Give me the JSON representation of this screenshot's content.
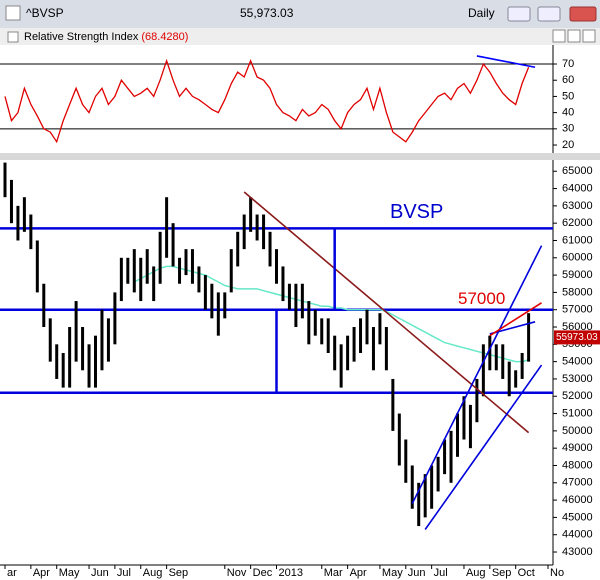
{
  "window": {
    "symbol": "^BVSP",
    "price": "55,973.03",
    "interval": "Daily"
  },
  "chart_data": [
    {
      "type": "line",
      "title": "Relative Strength Index",
      "subtitle": "(68.4280)",
      "color": "#e00000",
      "xlim": [
        0,
        84
      ],
      "ylim": [
        15.7,
        80.5
      ],
      "yticks": [
        20,
        30,
        40,
        50,
        60,
        70
      ],
      "hlines": [
        70,
        30
      ],
      "x": [
        0,
        1,
        2,
        3,
        4,
        5,
        6,
        7,
        8,
        9,
        10,
        11,
        12,
        13,
        14,
        15,
        16,
        17,
        18,
        19,
        20,
        21,
        22,
        23,
        24,
        25,
        26,
        27,
        28,
        29,
        30,
        31,
        32,
        33,
        34,
        35,
        36,
        37,
        38,
        39,
        40,
        41,
        42,
        43,
        44,
        45,
        46,
        47,
        48,
        49,
        50,
        51,
        52,
        53,
        54,
        55,
        56,
        57,
        58,
        59,
        60,
        61,
        62,
        63,
        64,
        65,
        66,
        67,
        68,
        69,
        70,
        71,
        72,
        73,
        74,
        75,
        76,
        77,
        78,
        79,
        80,
        81
      ],
      "values": [
        50,
        35,
        40,
        55,
        45,
        38,
        30,
        28,
        22,
        35,
        45,
        55,
        45,
        40,
        50,
        55,
        45,
        50,
        60,
        55,
        50,
        52,
        55,
        50,
        60,
        72,
        60,
        50,
        55,
        50,
        48,
        45,
        42,
        40,
        48,
        58,
        65,
        62,
        72,
        62,
        60,
        55,
        45,
        40,
        38,
        35,
        42,
        38,
        40,
        45,
        42,
        35,
        30,
        40,
        45,
        48,
        55,
        42,
        55,
        40,
        28,
        25,
        22,
        28,
        35,
        40,
        45,
        50,
        52,
        48,
        55,
        58,
        52,
        60,
        70,
        65,
        58,
        52,
        48,
        45,
        58,
        68
      ],
      "trendlines": [
        {
          "x": [
            73,
            82
          ],
          "y": [
            75,
            68
          ],
          "color": "#0000ff"
        }
      ]
    },
    {
      "type": "range-bar",
      "title": "BVSP",
      "annotation": "57000",
      "last_label": "55973.03",
      "color": "#000000",
      "xlim": [
        0,
        84
      ],
      "ylim": [
        42250,
        65650
      ],
      "yticks": [
        43000,
        44000,
        45000,
        46000,
        47000,
        48000,
        49000,
        50000,
        51000,
        52000,
        53000,
        54000,
        55000,
        56000,
        57000,
        58000,
        59000,
        60000,
        61000,
        62000,
        63000,
        64000,
        65000
      ],
      "xticks": [
        {
          "value": 0,
          "label": "ar"
        },
        {
          "value": 4,
          "label": "Apr"
        },
        {
          "value": 8,
          "label": "May"
        },
        {
          "value": 13,
          "label": "Jun"
        },
        {
          "value": 17,
          "label": "Jul"
        },
        {
          "value": 21,
          "label": "Aug"
        },
        {
          "value": 25,
          "label": "Sep"
        },
        {
          "value": 34,
          "label": "Nov"
        },
        {
          "value": 38,
          "label": "Dec"
        },
        {
          "value": 42,
          "label": "2013"
        },
        {
          "value": 49,
          "label": "Mar"
        },
        {
          "value": 53,
          "label": "Apr"
        },
        {
          "value": 58,
          "label": "May"
        },
        {
          "value": 62,
          "label": "Jun"
        },
        {
          "value": 66,
          "label": "Jul"
        },
        {
          "value": 71,
          "label": "Aug"
        },
        {
          "value": 75,
          "label": "Sep"
        },
        {
          "value": 79,
          "label": "Oct"
        },
        {
          "value": 84,
          "label": "No"
        }
      ],
      "x": [
        0,
        1,
        2,
        3,
        4,
        5,
        6,
        7,
        8,
        9,
        10,
        11,
        12,
        13,
        14,
        15,
        16,
        17,
        18,
        19,
        20,
        21,
        22,
        23,
        24,
        25,
        26,
        27,
        28,
        29,
        30,
        31,
        32,
        33,
        34,
        35,
        36,
        37,
        38,
        39,
        40,
        41,
        42,
        43,
        44,
        45,
        46,
        47,
        48,
        49,
        50,
        51,
        52,
        53,
        54,
        55,
        56,
        57,
        58,
        59,
        60,
        61,
        62,
        63,
        64,
        65,
        66,
        67,
        68,
        69,
        70,
        71,
        72,
        73,
        74,
        75,
        76,
        77,
        78,
        79,
        80,
        81
      ],
      "high": [
        65500,
        64500,
        63000,
        63500,
        62500,
        61000,
        58500,
        56500,
        55000,
        54500,
        56000,
        57500,
        56000,
        55000,
        55500,
        57000,
        56500,
        58000,
        60000,
        60000,
        60500,
        60000,
        60500,
        59500,
        61500,
        63500,
        62000,
        60000,
        60500,
        60500,
        59500,
        59000,
        58500,
        58000,
        58000,
        60500,
        61500,
        62500,
        63500,
        62500,
        62500,
        61500,
        60500,
        59500,
        58500,
        58500,
        58500,
        57500,
        57000,
        56500,
        56500,
        55500,
        55000,
        55500,
        56000,
        56500,
        57000,
        56000,
        56800,
        56000,
        53000,
        51000,
        49500,
        48000,
        47000,
        47500,
        48000,
        48500,
        49500,
        50000,
        51000,
        52000,
        51500,
        53000,
        55000,
        55500,
        55000,
        55000,
        54000,
        53500,
        54500,
        56800
      ],
      "low": [
        63500,
        62000,
        61000,
        61500,
        60500,
        58000,
        56000,
        54000,
        53000,
        52500,
        52500,
        54000,
        53500,
        52500,
        52500,
        53500,
        54000,
        55000,
        57500,
        58500,
        58000,
        57500,
        58500,
        57500,
        58500,
        60000,
        59500,
        58500,
        59000,
        58500,
        58000,
        57000,
        56500,
        55500,
        56500,
        58000,
        59500,
        60500,
        61500,
        61000,
        60500,
        59500,
        58500,
        57500,
        57000,
        56000,
        56500,
        55000,
        55500,
        55000,
        54500,
        53500,
        52500,
        53500,
        54000,
        54500,
        55000,
        53500,
        55000,
        53500,
        50000,
        48000,
        47000,
        45500,
        44500,
        45000,
        45500,
        46500,
        47500,
        47000,
        48500,
        49500,
        49000,
        50500,
        52000,
        53500,
        53500,
        53000,
        52000,
        52500,
        53000,
        54000
      ],
      "ma": [
        null,
        null,
        null,
        null,
        null,
        null,
        null,
        null,
        null,
        null,
        null,
        null,
        null,
        null,
        null,
        null,
        null,
        null,
        null,
        null,
        58600,
        58800,
        59000,
        59200,
        59400,
        59500,
        59500,
        59400,
        59300,
        59200,
        59100,
        59000,
        58800,
        58600,
        58400,
        58300,
        58200,
        58200,
        58200,
        58200,
        58100,
        58000,
        57900,
        57800,
        57700,
        57600,
        57500,
        57400,
        57300,
        57200,
        57200,
        57100,
        57100,
        57000,
        57000,
        57000,
        57000,
        57000,
        57000,
        56900,
        56700,
        56500,
        56300,
        56100,
        55900,
        55700,
        55500,
        55300,
        55100,
        55000,
        54900,
        54800,
        54700,
        54600,
        54500,
        54400,
        54300,
        54200,
        54100,
        54000,
        54000,
        54100
      ],
      "ma_color": "#66e8c8",
      "levels": [
        61700,
        57000,
        52200
      ],
      "level_color": "#0000dd",
      "trendlines": [
        {
          "x": [
            37,
            81
          ],
          "y": [
            63800,
            49900
          ],
          "color": "#8b1a1a"
        },
        {
          "x": [
            63,
            83
          ],
          "y": [
            45800,
            60700
          ],
          "color": "#0000dd"
        },
        {
          "x": [
            65,
            83
          ],
          "y": [
            44300,
            53800
          ],
          "color": "#0000dd"
        },
        {
          "x": [
            75,
            82
          ],
          "y": [
            55600,
            56300
          ],
          "color": "#0000dd"
        },
        {
          "x": [
            75,
            83
          ],
          "y": [
            55500,
            57400
          ],
          "color": "#e00000"
        },
        {
          "x": [
            51,
            51
          ],
          "y": [
            61700,
            57000
          ],
          "color": "#0000dd"
        },
        {
          "x": [
            42,
            42
          ],
          "y": [
            57000,
            52200
          ],
          "color": "#0000dd"
        }
      ]
    }
  ]
}
